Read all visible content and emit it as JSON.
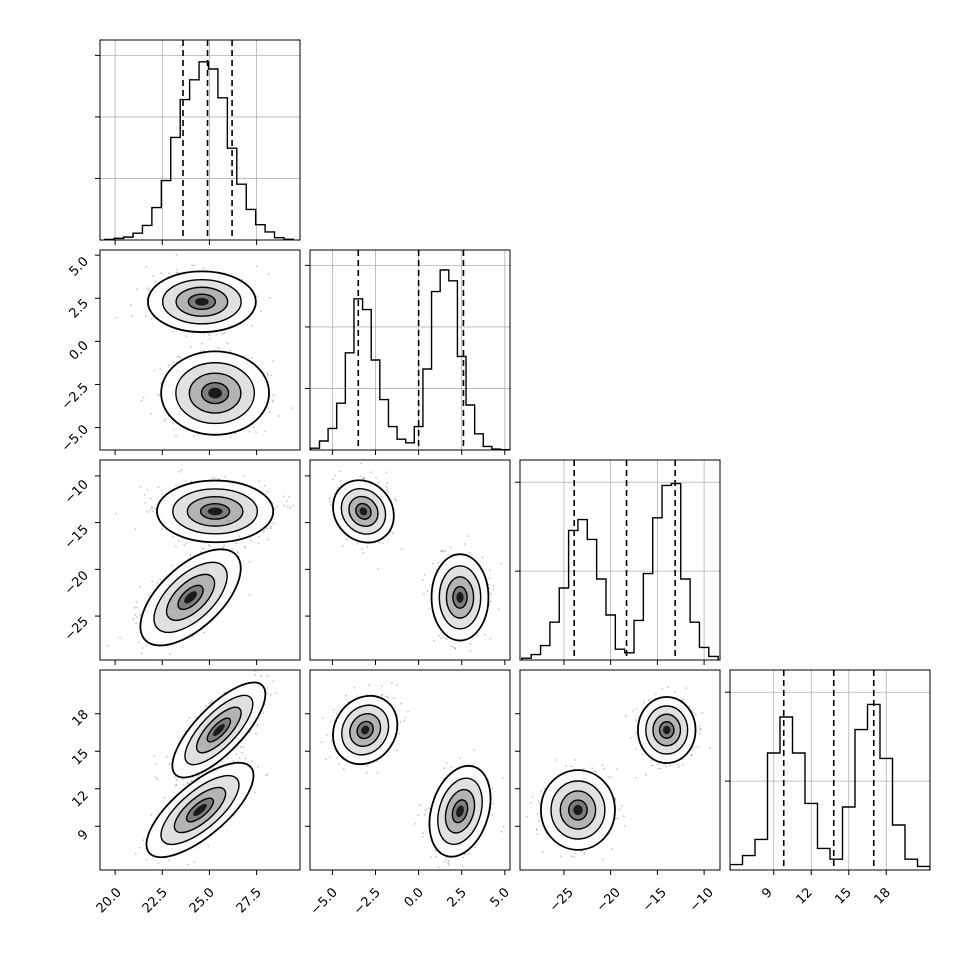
{
  "figure": {
    "type": "corner-plot",
    "parameters": 4,
    "colors": {
      "line": "#000000",
      "grid": "#b0b0b0",
      "background": "#ffffff",
      "points": "#555555"
    }
  },
  "chart_data": [
    {
      "panel": "hist-p1",
      "type": "bar",
      "grid": true,
      "xlim": [
        19.2,
        29.8
      ],
      "ylim": [
        0,
        1
      ],
      "x": [
        19.7,
        20.2,
        20.7,
        21.2,
        21.7,
        22.2,
        22.7,
        23.2,
        23.7,
        24.2,
        24.7,
        25.2,
        25.7,
        26.2,
        26.7,
        27.2,
        27.7,
        28.2,
        28.7,
        29.2
      ],
      "values": [
        0.003,
        0.009,
        0.016,
        0.038,
        0.081,
        0.18,
        0.33,
        0.57,
        0.78,
        0.89,
        0.99,
        0.95,
        0.79,
        0.51,
        0.31,
        0.17,
        0.085,
        0.045,
        0.013,
        0.004
      ],
      "quantiles": [
        23.6,
        24.9,
        26.2
      ],
      "ytick_count": 3
    },
    {
      "panel": "hist-p2",
      "type": "bar",
      "grid": true,
      "xlim": [
        -6.3,
        5.3
      ],
      "ylim": [
        0,
        1
      ],
      "x": [
        -6.0,
        -5.5,
        -5.0,
        -4.5,
        -4.0,
        -3.5,
        -3.0,
        -2.5,
        -2.0,
        -1.5,
        -1.0,
        -0.5,
        0.0,
        0.5,
        1.0,
        1.5,
        2.0,
        2.5,
        3.0,
        3.5,
        4.0,
        4.5,
        5.0
      ],
      "values": [
        0.01,
        0.05,
        0.12,
        0.26,
        0.54,
        0.84,
        0.78,
        0.5,
        0.28,
        0.13,
        0.06,
        0.04,
        0.13,
        0.45,
        0.88,
        1.0,
        0.94,
        0.52,
        0.25,
        0.09,
        0.02,
        0.005,
        0.002
      ],
      "quantiles": [
        -3.5,
        0.0,
        2.6
      ],
      "ytick_count": 3
    },
    {
      "panel": "hist-p3",
      "type": "bar",
      "grid": true,
      "xlim": [
        -29.7,
        -8.3
      ],
      "ylim": [
        0,
        1
      ],
      "x": [
        -29,
        -28,
        -27,
        -26,
        -25,
        -24,
        -23,
        -22,
        -21,
        -20,
        -19,
        -18,
        -17,
        -16,
        -15,
        -14,
        -13,
        -12,
        -11,
        -10,
        -9
      ],
      "values": [
        0.01,
        0.03,
        0.08,
        0.21,
        0.4,
        0.72,
        0.78,
        0.67,
        0.45,
        0.25,
        0.06,
        0.04,
        0.22,
        0.48,
        0.79,
        0.97,
        0.98,
        0.45,
        0.21,
        0.07,
        0.02
      ],
      "quantiles": [
        -23.9,
        -18.3,
        -13.1
      ],
      "ytick_count": 2
    },
    {
      "panel": "hist-p4",
      "type": "bar",
      "grid": true,
      "xlim": [
        5.5,
        21.5
      ],
      "ylim": [
        0,
        1
      ],
      "x": [
        6.0,
        7.0,
        8.0,
        9.0,
        10.0,
        11.0,
        12.0,
        13.0,
        14.0,
        15.0,
        16.0,
        17.0,
        18.0,
        19.0,
        20.0,
        21.0
      ],
      "values": [
        0.03,
        0.08,
        0.17,
        0.65,
        0.85,
        0.65,
        0.37,
        0.12,
        0.06,
        0.35,
        0.78,
        0.92,
        0.62,
        0.25,
        0.06,
        0.02
      ],
      "quantiles": [
        9.8,
        13.8,
        17.0
      ],
      "ytick_count": 2
    },
    {
      "panel": "pair-p1-p2",
      "type": "scatter",
      "xlim": [
        19.2,
        29.8
      ],
      "ylim": [
        -6.3,
        5.3
      ],
      "yticks": [
        "5.0",
        "2.5",
        "0.0",
        "−2.5",
        "−5.0"
      ],
      "modes": [
        {
          "cx": 24.6,
          "cy": 2.3,
          "sx": 1.3,
          "sy": 0.8,
          "angle": 0
        },
        {
          "cx": 25.3,
          "cy": -3.0,
          "sx": 1.3,
          "sy": 1.1,
          "angle": 0
        }
      ]
    },
    {
      "panel": "pair-p1-p3",
      "type": "scatter",
      "xlim": [
        19.2,
        29.8
      ],
      "ylim": [
        -29.7,
        -8.3
      ],
      "yticks": [
        "−10",
        "−15",
        "−20",
        "−25"
      ],
      "modes": [
        {
          "cx": 25.3,
          "cy": -13.8,
          "sx": 1.4,
          "sy": 1.5,
          "angle": 0
        },
        {
          "cx": 24.0,
          "cy": -23.0,
          "sx": 1.5,
          "sy": 1.5,
          "angle": 0.75
        }
      ]
    },
    {
      "panel": "pair-p2-p3",
      "type": "scatter",
      "xlim": [
        -6.3,
        5.3
      ],
      "ylim": [
        -29.7,
        -8.3
      ],
      "modes": [
        {
          "cx": -3.2,
          "cy": -13.8,
          "sx": 0.75,
          "sy": 1.6,
          "angle": 0.7
        },
        {
          "cx": 2.4,
          "cy": -23.0,
          "sx": 0.75,
          "sy": 2.1,
          "angle": 0
        }
      ]
    },
    {
      "panel": "pair-p1-p4",
      "type": "scatter",
      "xlim": [
        19.2,
        29.8
      ],
      "ylim": [
        5.5,
        21.5
      ],
      "xticks": [
        "20.0",
        "22.5",
        "25.0",
        "27.5"
      ],
      "yticks": [
        "18",
        "15",
        "12",
        "9"
      ],
      "modes": [
        {
          "cx": 25.5,
          "cy": 16.7,
          "sx": 1.5,
          "sy": 0.85,
          "angle": 0.8
        },
        {
          "cx": 24.5,
          "cy": 10.3,
          "sx": 1.6,
          "sy": 0.95,
          "angle": 0.7
        }
      ]
    },
    {
      "panel": "pair-p2-p4",
      "type": "scatter",
      "xlim": [
        -6.3,
        5.3
      ],
      "ylim": [
        5.5,
        21.5
      ],
      "xticks": [
        "−5.0",
        "−2.5",
        "0.0",
        "2.5",
        "5.0"
      ],
      "modes": [
        {
          "cx": -3.1,
          "cy": 16.7,
          "sx": 0.8,
          "sy": 1.3,
          "angle": -0.6
        },
        {
          "cx": 2.4,
          "cy": 10.2,
          "sx": 0.75,
          "sy": 1.7,
          "angle": -0.3
        }
      ]
    },
    {
      "panel": "pair-p3-p4",
      "type": "scatter",
      "xlim": [
        -29.7,
        -8.3
      ],
      "ylim": [
        5.5,
        21.5
      ],
      "xticks": [
        "−25",
        "−20",
        "−15",
        "−10"
      ],
      "modes": [
        {
          "cx": -14.0,
          "cy": 16.7,
          "sx": 1.4,
          "sy": 1.2,
          "angle": 0
        },
        {
          "cx": -23.5,
          "cy": 10.3,
          "sx": 1.8,
          "sy": 1.45,
          "angle": 0
        }
      ]
    }
  ],
  "tick_labels": {
    "x_p1": [
      "20.0",
      "22.5",
      "25.0",
      "27.5"
    ],
    "x_p2": [
      "−5.0",
      "−2.5",
      "0.0",
      "2.5",
      "5.0"
    ],
    "x_p3": [
      "−25",
      "−20",
      "−15",
      "−10"
    ],
    "x_p4": [
      "9",
      "12",
      "15",
      "18"
    ],
    "y_p2": [
      "5.0",
      "2.5",
      "0.0",
      "−2.5",
      "−5.0"
    ],
    "y_p3": [
      "−10",
      "−15",
      "−20",
      "−25"
    ],
    "y_p4": [
      "18",
      "15",
      "12",
      "9"
    ]
  }
}
